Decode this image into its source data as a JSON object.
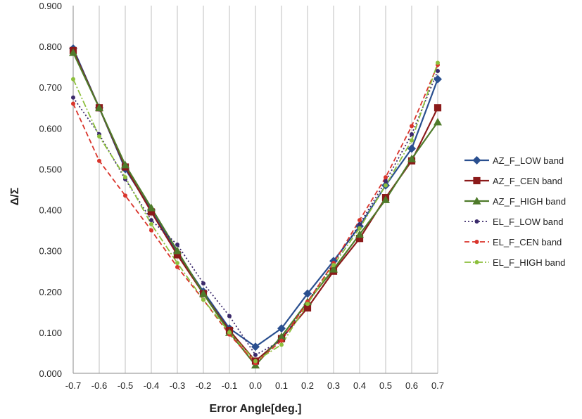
{
  "chart_data": {
    "type": "line",
    "title": "",
    "xlabel": "Error Angle[deg.]",
    "ylabel": "Δ/Σ",
    "xlim": [
      -0.7,
      0.7
    ],
    "ylim": [
      0,
      0.9
    ],
    "x_ticks": [
      "-0.7",
      "-0.6",
      "-0.5",
      "-0.4",
      "-0.3",
      "-0.2",
      "-0.1",
      "0.0",
      "0.1",
      "0.2",
      "0.3",
      "0.4",
      "0.5",
      "0.6",
      "0.7"
    ],
    "y_ticks": [
      "0.000",
      "0.100",
      "0.200",
      "0.300",
      "0.400",
      "0.500",
      "0.600",
      "0.700",
      "0.800",
      "0.900"
    ],
    "grid": "vertical",
    "legend_position": "right",
    "x": [
      -0.7,
      -0.6,
      -0.5,
      -0.4,
      -0.3,
      -0.2,
      -0.1,
      0.0,
      0.1,
      0.2,
      0.3,
      0.4,
      0.5,
      0.6,
      0.7
    ],
    "series": [
      {
        "name": "AZ_F_LOW band",
        "color": "#2a4f8f",
        "marker": "diamond",
        "dash": "solid",
        "values": [
          0.795,
          0.65,
          0.5,
          0.4,
          0.295,
          0.2,
          0.11,
          0.065,
          0.11,
          0.195,
          0.275,
          0.36,
          0.46,
          0.55,
          0.72
        ]
      },
      {
        "name": "AZ_F_CEN band",
        "color": "#8b1a1a",
        "marker": "square",
        "dash": "solid",
        "values": [
          0.79,
          0.65,
          0.505,
          0.395,
          0.29,
          0.195,
          0.105,
          0.03,
          0.085,
          0.16,
          0.25,
          0.33,
          0.43,
          0.52,
          0.65
        ]
      },
      {
        "name": "AZ_F_HIGH band",
        "color": "#4e7a2a",
        "marker": "triangle",
        "dash": "solid",
        "values": [
          0.785,
          0.65,
          0.51,
          0.405,
          0.3,
          0.195,
          0.1,
          0.02,
          0.09,
          0.175,
          0.255,
          0.34,
          0.425,
          0.525,
          0.615
        ]
      },
      {
        "name": "EL_F_LOW band",
        "color": "#3b2a6b",
        "marker": "circle",
        "dash": "dotted",
        "values": [
          0.675,
          0.585,
          0.475,
          0.375,
          0.315,
          0.22,
          0.14,
          0.045,
          0.08,
          0.175,
          0.27,
          0.365,
          0.47,
          0.585,
          0.74
        ]
      },
      {
        "name": "EL_F_CEN band",
        "color": "#d9342b",
        "marker": "circle",
        "dash": "dashed",
        "values": [
          0.66,
          0.52,
          0.435,
          0.35,
          0.26,
          0.18,
          0.095,
          0.025,
          0.08,
          0.175,
          0.27,
          0.375,
          0.48,
          0.605,
          0.755
        ]
      },
      {
        "name": "EL_F_HIGH band",
        "color": "#8cbf3c",
        "marker": "circle",
        "dash": "dashdot",
        "values": [
          0.72,
          0.58,
          0.48,
          0.365,
          0.27,
          0.18,
          0.1,
          0.03,
          0.07,
          0.17,
          0.265,
          0.355,
          0.46,
          0.57,
          0.76
        ]
      }
    ]
  }
}
